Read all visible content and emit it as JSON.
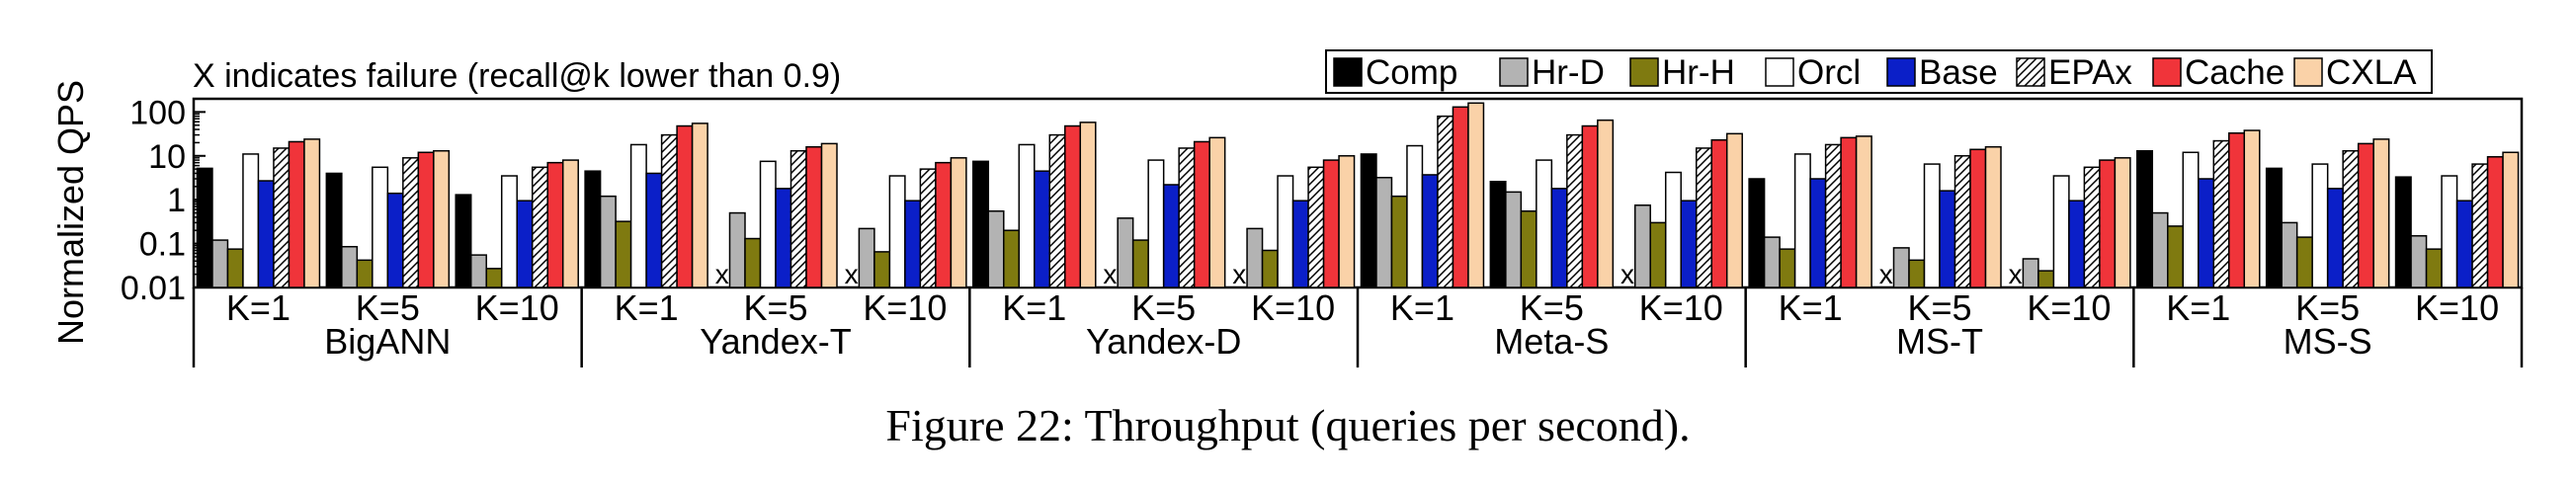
{
  "caption": "Figure 22: Throughput (queries per second).",
  "annotation": "X indicates failure (recall@k lower than 0.9)",
  "failure_marker": "x",
  "colors": {
    "Comp": "#000000",
    "Hr-D": "#b3b3b3",
    "Hr-H": "#7f7a10",
    "Orcl": "#ffffff",
    "Base": "#0b1fc8",
    "EPAx": "hatch",
    "Cache": "#f0343a",
    "CXLA": "#fad2a8",
    "annotation": "#ff0000"
  },
  "chart_data": {
    "type": "bar",
    "ylabel": "Normalized QPS",
    "yscale": "log",
    "ylim": [
      0.01,
      200
    ],
    "yticks": [
      "0.01",
      "0.1",
      "1",
      "10",
      "100"
    ],
    "legend_position": "top-right",
    "groups": [
      "BigANN",
      "Yandex-T",
      "Yandex-D",
      "Meta-S",
      "MS-T",
      "MS-S"
    ],
    "subgroups": [
      "K=1",
      "K=5",
      "K=10"
    ],
    "series": [
      {
        "name": "Comp",
        "values": [
          [
            5.2,
            4.0,
            1.3
          ],
          [
            4.5,
            null,
            null
          ],
          [
            7.5,
            null,
            null
          ],
          [
            11,
            2.6,
            null
          ],
          [
            3.0,
            null,
            null
          ],
          [
            13,
            5.2,
            3.3
          ]
        ]
      },
      {
        "name": "Hr-D",
        "values": [
          [
            0.12,
            0.085,
            0.055
          ],
          [
            1.2,
            0.5,
            0.22
          ],
          [
            0.55,
            0.38,
            0.22
          ],
          [
            3.2,
            1.5,
            0.75
          ],
          [
            0.14,
            0.08,
            0.045
          ],
          [
            0.5,
            0.3,
            0.15
          ]
        ]
      },
      {
        "name": "Hr-H",
        "values": [
          [
            0.075,
            0.042,
            0.027
          ],
          [
            0.32,
            0.13,
            0.065
          ],
          [
            0.2,
            0.12,
            0.07
          ],
          [
            1.2,
            0.55,
            0.3
          ],
          [
            0.075,
            0.042,
            0.024
          ],
          [
            0.25,
            0.14,
            0.075
          ]
        ]
      },
      {
        "name": "Orcl",
        "values": [
          [
            11,
            5.5,
            3.5
          ],
          [
            18,
            7.5,
            3.5
          ],
          [
            18,
            8,
            3.5
          ],
          [
            17,
            8,
            4.2
          ],
          [
            11,
            6.5,
            3.5
          ],
          [
            12,
            6.5,
            3.5
          ]
        ]
      },
      {
        "name": "Base",
        "values": [
          [
            2.7,
            1.4,
            0.95
          ],
          [
            4.0,
            1.8,
            0.95
          ],
          [
            4.5,
            2.2,
            0.95
          ],
          [
            3.7,
            1.8,
            0.95
          ],
          [
            3.0,
            1.6,
            0.95
          ],
          [
            3.0,
            1.8,
            0.95
          ]
        ]
      },
      {
        "name": "EPAx",
        "values": [
          [
            15,
            9,
            5.5
          ],
          [
            30,
            13,
            5
          ],
          [
            30,
            15,
            5.5
          ],
          [
            80,
            30,
            15
          ],
          [
            18,
            10,
            5.5
          ],
          [
            22,
            13,
            6.5
          ]
        ]
      },
      {
        "name": "Cache",
        "values": [
          [
            21,
            12,
            7
          ],
          [
            48,
            16,
            7
          ],
          [
            48,
            21,
            8
          ],
          [
            130,
            48,
            23
          ],
          [
            26,
            14,
            8
          ],
          [
            33,
            19,
            9.5
          ]
        ]
      },
      {
        "name": "CXLA",
        "values": [
          [
            24,
            13,
            8
          ],
          [
            55,
            19,
            9
          ],
          [
            58,
            26,
            10
          ],
          [
            160,
            65,
            32
          ],
          [
            28,
            16,
            9
          ],
          [
            38,
            24,
            12
          ]
        ]
      }
    ]
  }
}
